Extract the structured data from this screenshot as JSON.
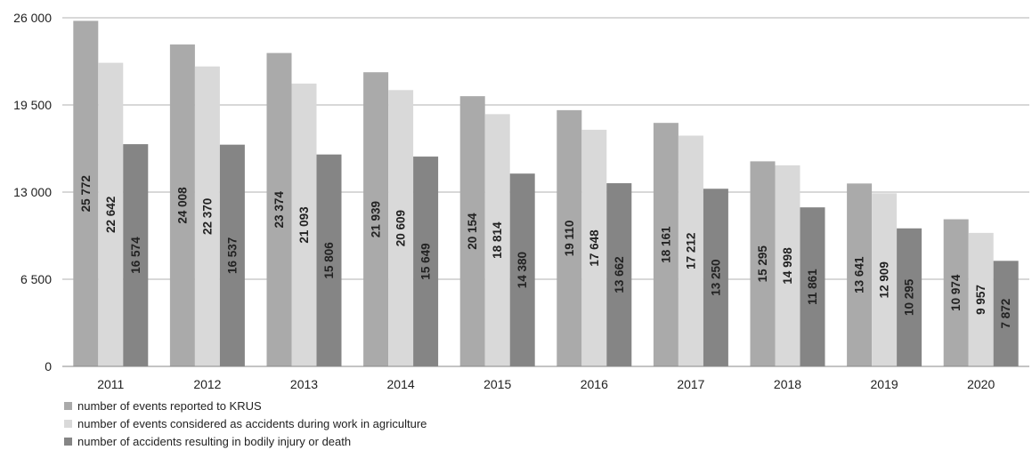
{
  "chart_data": {
    "type": "bar",
    "title": "",
    "xlabel": "",
    "ylabel": "",
    "categories": [
      "2011",
      "2012",
      "2013",
      "2014",
      "2015",
      "2016",
      "2017",
      "2018",
      "2019",
      "2020"
    ],
    "ylim": [
      0,
      26000
    ],
    "yticks": [
      0,
      6500,
      13000,
      19500,
      26000
    ],
    "ytick_labels": [
      "0",
      "6 500",
      "13 000",
      "19 500",
      "26 000"
    ],
    "grid": true,
    "legend_position": "bottom-left",
    "series": [
      {
        "name": "number of events reported to KRUS",
        "color": "#aaaaaa",
        "values": [
          25772,
          24008,
          23374,
          21939,
          20154,
          19110,
          18161,
          15295,
          13641,
          10974
        ],
        "labels": [
          "25 772",
          "24 008",
          "23 374",
          "21 939",
          "20 154",
          "19 110",
          "18 161",
          "15 295",
          "13 641",
          "10 974"
        ]
      },
      {
        "name": "number of events considered as accidents during work in agriculture",
        "color": "#d9d9d9",
        "values": [
          22642,
          22370,
          21093,
          20609,
          18814,
          17648,
          17212,
          14998,
          12909,
          9957
        ],
        "labels": [
          "22 642",
          "22 370",
          "21 093",
          "20 609",
          "18 814",
          "17 648",
          "17 212",
          "14 998",
          "12 909",
          "9 957"
        ]
      },
      {
        "name": "number of accidents resulting in bodily injury or death",
        "color": "#858585",
        "values": [
          16574,
          16537,
          15806,
          15649,
          14380,
          13662,
          13250,
          11861,
          10295,
          7872
        ],
        "labels": [
          "16 574",
          "16 537",
          "15 806",
          "15 649",
          "14 380",
          "13 662",
          "13 250",
          "11 861",
          "10 295",
          "7 872"
        ]
      }
    ]
  }
}
